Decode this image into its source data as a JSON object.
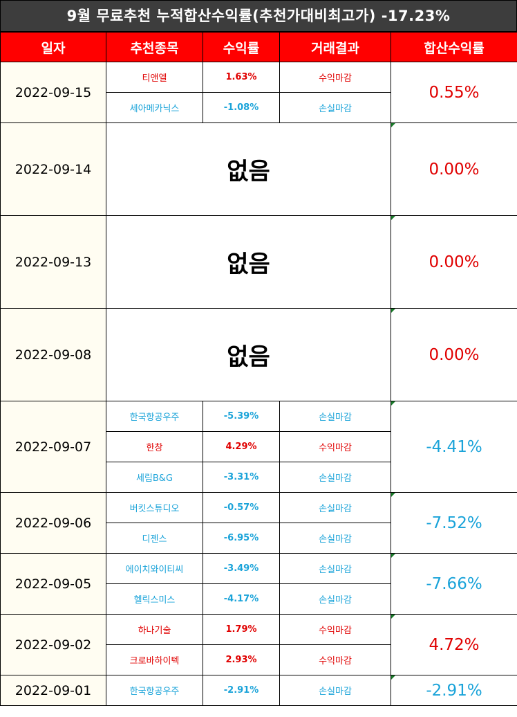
{
  "title": "9월 무료추천 누적합산수익률(추천가대비최고가) -17.23%",
  "headers": [
    "일자",
    "추천종목",
    "수익률",
    "거래결과",
    "합산수익률"
  ],
  "colors": {
    "header_bg": "#ff0000",
    "profit": "#e00000",
    "loss": "#1aa3d9",
    "banner_bg": "#3d3d3d"
  },
  "groups": [
    {
      "date": "2022-09-15",
      "cumulative": "0.55%",
      "cum_sign": "pos",
      "rows": [
        {
          "stock": "티앤엘",
          "pct": "1.63%",
          "result": "수익마감",
          "sign": "pos"
        },
        {
          "stock": "세아메카닉스",
          "pct": "-1.08%",
          "result": "손실마감",
          "sign": "neg"
        }
      ]
    },
    {
      "date": "2022-09-14",
      "cumulative": "0.00%",
      "cum_sign": "pos",
      "none_text": "없음",
      "rows": []
    },
    {
      "date": "2022-09-13",
      "cumulative": "0.00%",
      "cum_sign": "pos",
      "none_text": "없음",
      "rows": []
    },
    {
      "date": "2022-09-08",
      "cumulative": "0.00%",
      "cum_sign": "pos",
      "none_text": "없음",
      "rows": []
    },
    {
      "date": "2022-09-07",
      "cumulative": "-4.41%",
      "cum_sign": "neg",
      "rows": [
        {
          "stock": "한국항공우주",
          "pct": "-5.39%",
          "result": "손실마감",
          "sign": "neg"
        },
        {
          "stock": "한창",
          "pct": "4.29%",
          "result": "수익마감",
          "sign": "pos"
        },
        {
          "stock": "세림B&G",
          "pct": "-3.31%",
          "result": "손실마감",
          "sign": "neg"
        }
      ]
    },
    {
      "date": "2022-09-06",
      "cumulative": "-7.52%",
      "cum_sign": "neg",
      "rows": [
        {
          "stock": "버킷스튜디오",
          "pct": "-0.57%",
          "result": "손실마감",
          "sign": "neg"
        },
        {
          "stock": "디젠스",
          "pct": "-6.95%",
          "result": "손실마감",
          "sign": "neg"
        }
      ]
    },
    {
      "date": "2022-09-05",
      "cumulative": "-7.66%",
      "cum_sign": "neg",
      "rows": [
        {
          "stock": "에이치와이티씨",
          "pct": "-3.49%",
          "result": "손실마감",
          "sign": "neg"
        },
        {
          "stock": "헬릭스미스",
          "pct": "-4.17%",
          "result": "손실마감",
          "sign": "neg"
        }
      ]
    },
    {
      "date": "2022-09-02",
      "cumulative": "4.72%",
      "cum_sign": "pos",
      "rows": [
        {
          "stock": "하나기술",
          "pct": "1.79%",
          "result": "수익마감",
          "sign": "pos"
        },
        {
          "stock": "크로바하이텍",
          "pct": "2.93%",
          "result": "수익마감",
          "sign": "pos"
        }
      ]
    },
    {
      "date": "2022-09-01",
      "cumulative": "-2.91%",
      "cum_sign": "neg",
      "rows": [
        {
          "stock": "한국항공우주",
          "pct": "-2.91%",
          "result": "손실마감",
          "sign": "neg"
        }
      ]
    }
  ]
}
